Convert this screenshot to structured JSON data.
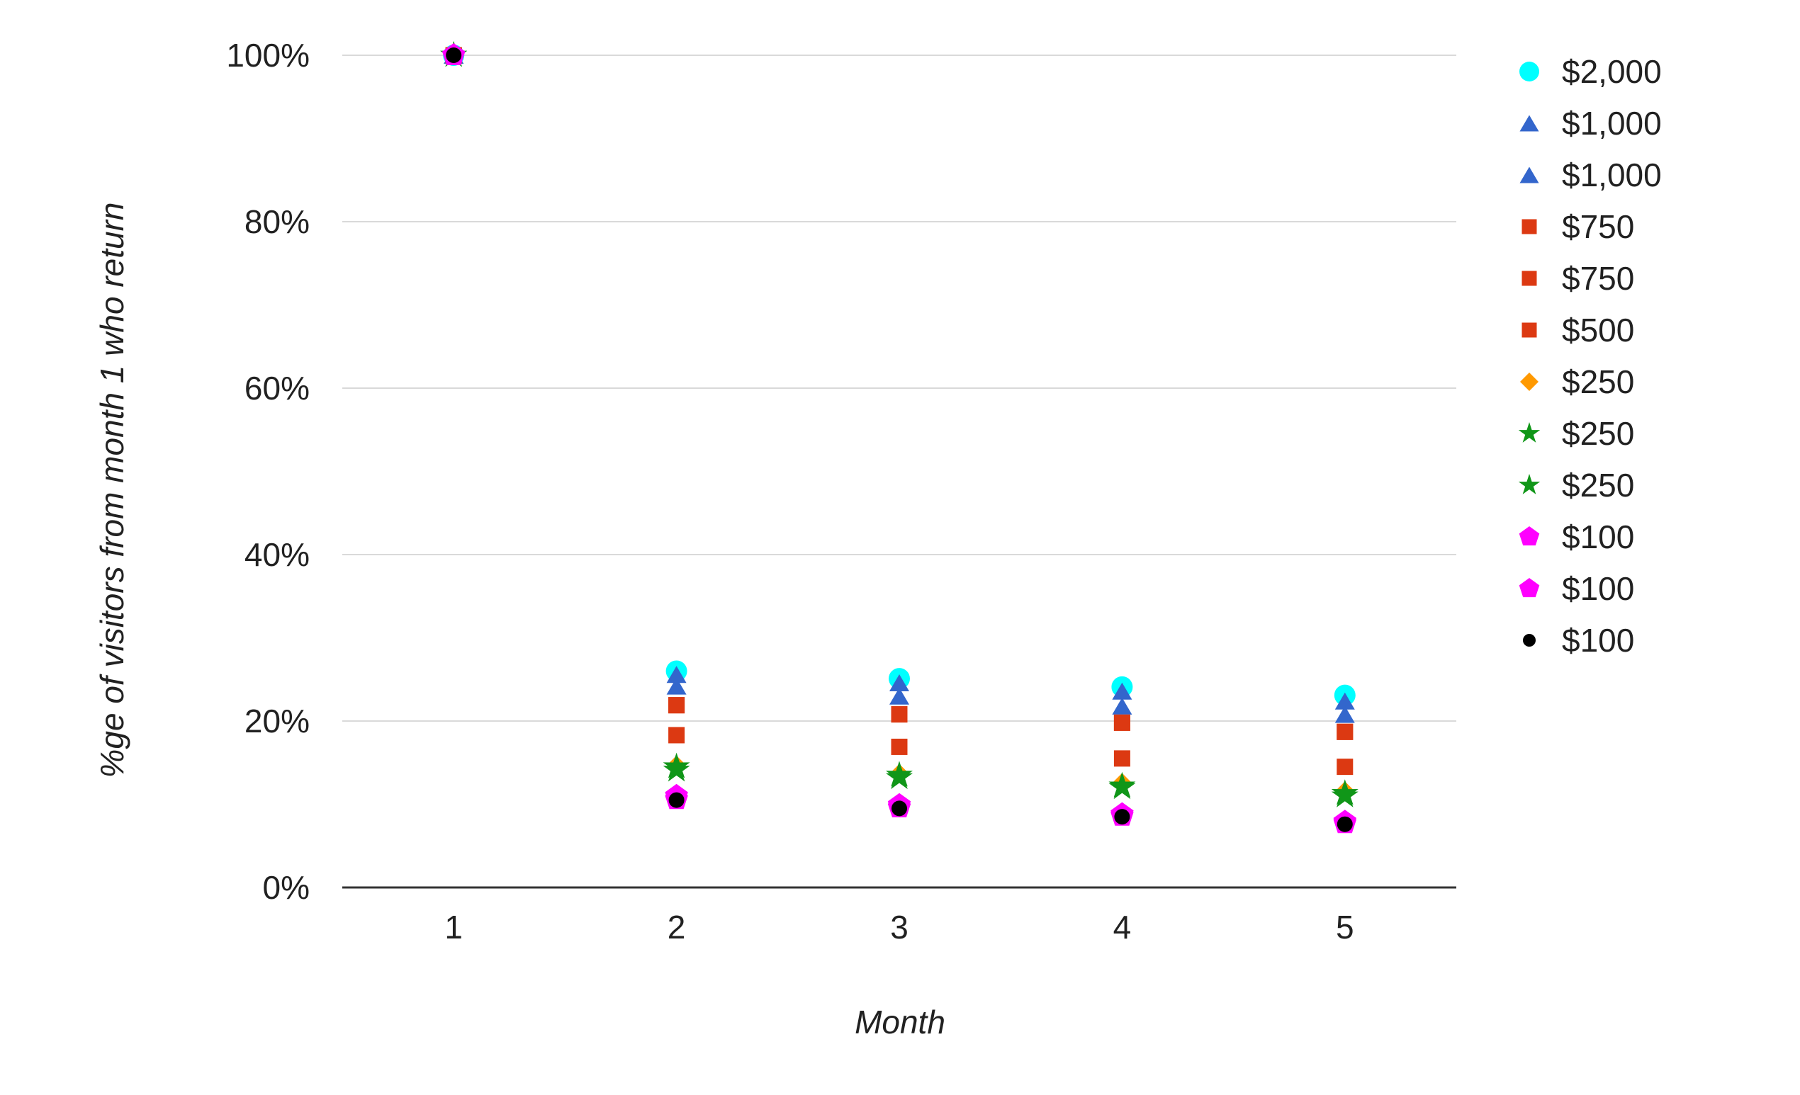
{
  "chart_data": {
    "type": "scatter",
    "title": "",
    "xlabel": "Month",
    "ylabel": "%ge of visitors from month 1 who return",
    "x": [
      1,
      2,
      3,
      4,
      5
    ],
    "x_ticks": [
      "1",
      "2",
      "3",
      "4",
      "5"
    ],
    "y_ticks": [
      {
        "label": "0%",
        "value": 0
      },
      {
        "label": "20%",
        "value": 20
      },
      {
        "label": "40%",
        "value": 40
      },
      {
        "label": "60%",
        "value": 60
      },
      {
        "label": "80%",
        "value": 80
      },
      {
        "label": "100%",
        "value": 100
      }
    ],
    "ylim": [
      0,
      105
    ],
    "grid": true,
    "legend_position": "right",
    "series": [
      {
        "name": "$2,000",
        "marker": "circle",
        "color": "#00FFFF",
        "values": [
          100,
          26.0,
          25.1,
          24.1,
          23.1
        ]
      },
      {
        "name": "$1,000",
        "marker": "triangle",
        "color": "#3366CC",
        "values": [
          100,
          25.6,
          24.6,
          23.6,
          22.4
        ]
      },
      {
        "name": "$1,000",
        "marker": "triangle",
        "color": "#3366CC",
        "values": [
          100,
          24.2,
          23.0,
          21.8,
          20.8
        ]
      },
      {
        "name": "$750",
        "marker": "square",
        "color": "#DC3912",
        "values": [
          100,
          21.9,
          20.8,
          19.8,
          18.7
        ]
      },
      {
        "name": "$750",
        "marker": "square",
        "color": "#DC3912",
        "values": [
          100,
          21.9,
          20.8,
          19.8,
          18.7
        ]
      },
      {
        "name": "$500",
        "marker": "square",
        "color": "#DC3912",
        "values": [
          100,
          18.3,
          16.9,
          15.5,
          14.5
        ]
      },
      {
        "name": "$250",
        "marker": "diamond",
        "color": "#FF9900",
        "values": [
          100,
          14.7,
          13.7,
          12.6,
          11.6
        ]
      },
      {
        "name": "$250",
        "marker": "star",
        "color": "#109618",
        "values": [
          100,
          14.5,
          13.5,
          12.2,
          11.3
        ]
      },
      {
        "name": "$250",
        "marker": "star",
        "color": "#109618",
        "values": [
          100,
          14.1,
          13.2,
          12.0,
          11.0
        ]
      },
      {
        "name": "$100",
        "marker": "pentagon",
        "color": "#FF00FF",
        "values": [
          100,
          11.0,
          9.9,
          8.8,
          7.9
        ]
      },
      {
        "name": "$100",
        "marker": "pentagon",
        "color": "#FF00FF",
        "values": [
          100,
          10.6,
          9.6,
          8.6,
          7.7
        ]
      },
      {
        "name": "$100",
        "marker": "circle-small",
        "color": "#000000",
        "values": [
          100,
          10.5,
          9.5,
          8.5,
          7.6
        ]
      }
    ],
    "colors": {
      "grid_line": "#D9D9D9",
      "axis_line": "#333333",
      "text": "#212121",
      "background": "#FFFFFF"
    }
  }
}
